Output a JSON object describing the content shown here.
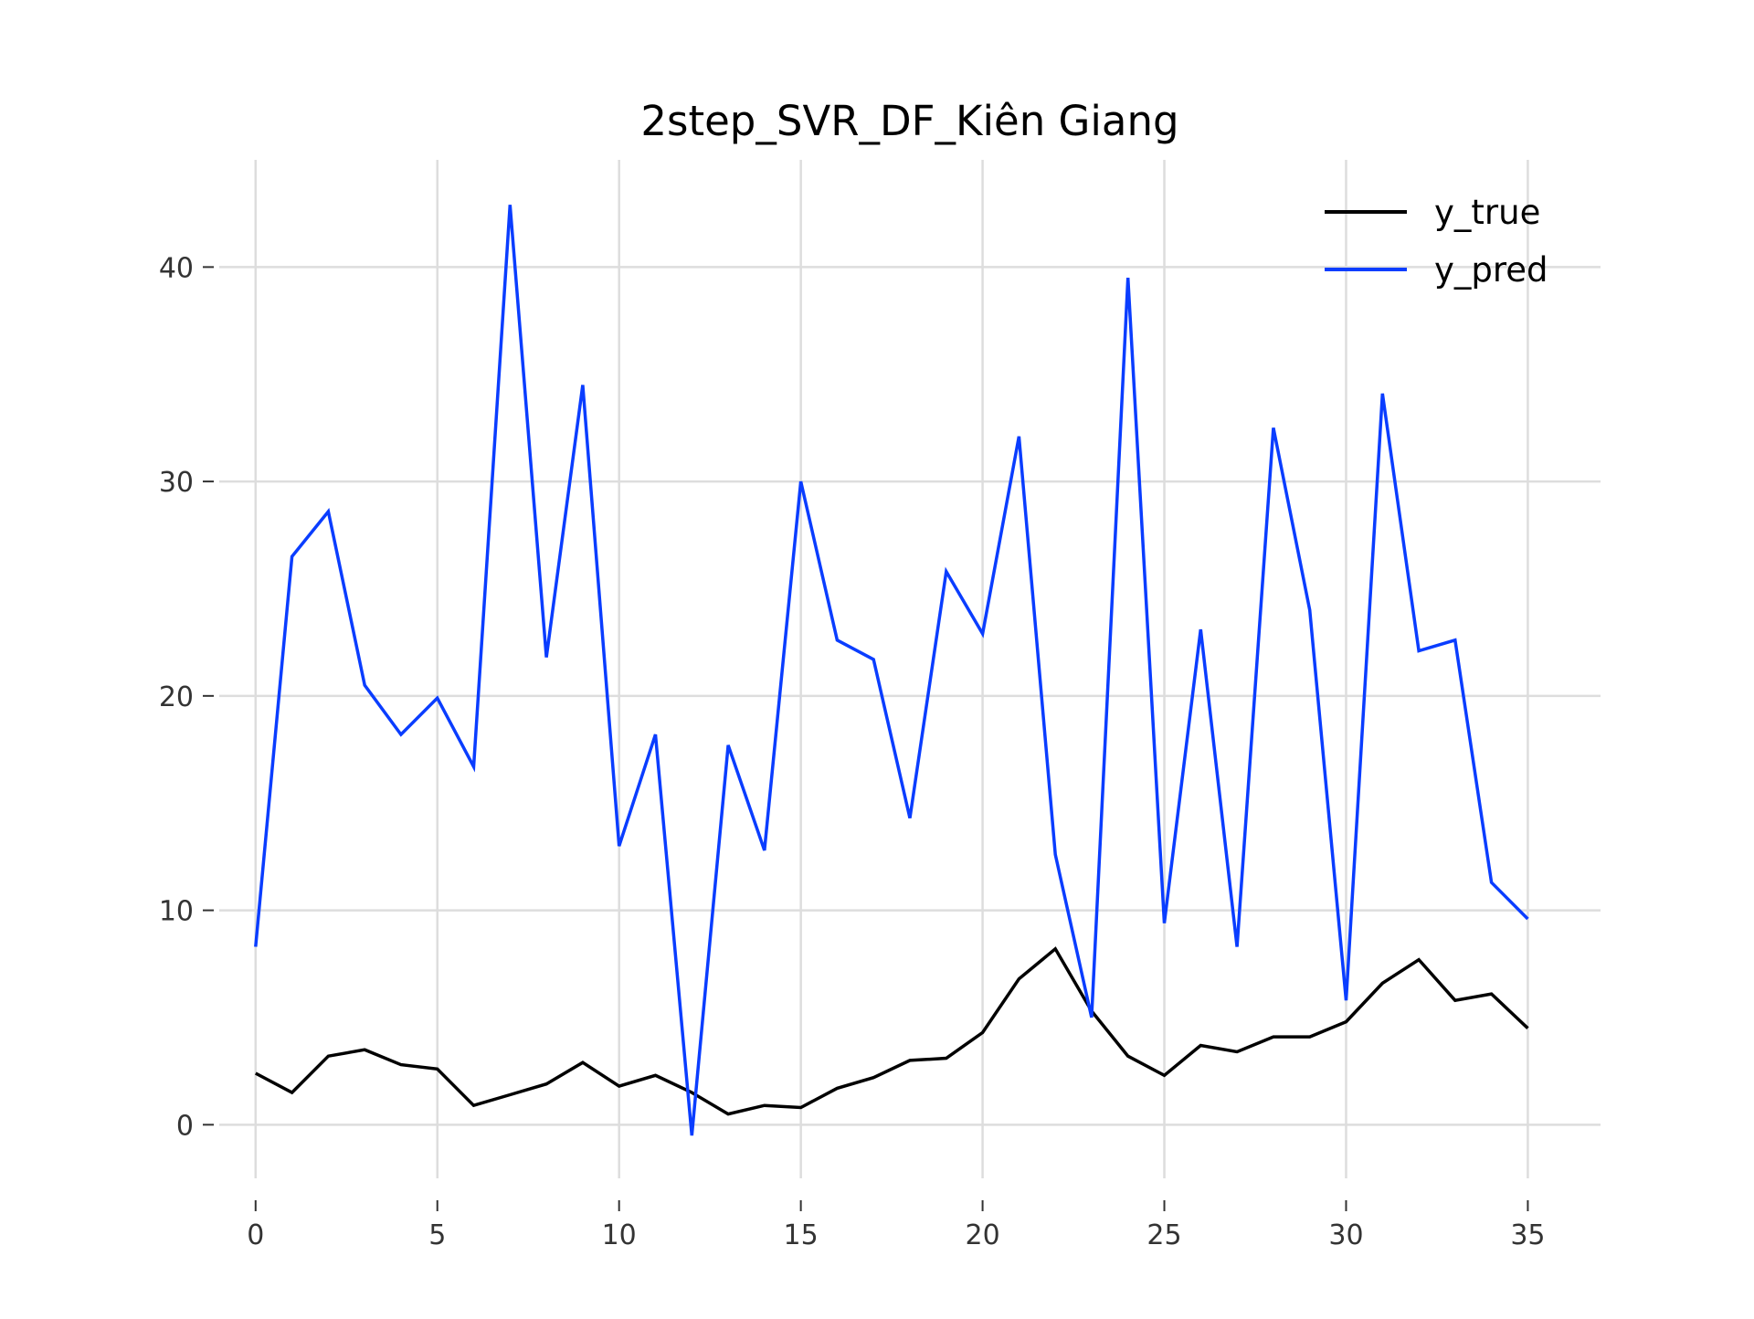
{
  "chart_data": {
    "type": "line",
    "title": "2step_SVR_DF_Kiên Giang",
    "xlabel": "",
    "ylabel": "",
    "xlim": [
      -1,
      37
    ],
    "ylim": [
      -2.5,
      45
    ],
    "grid": true,
    "legend_position": "top-right",
    "x_ticks": [
      0,
      5,
      10,
      15,
      20,
      25,
      30,
      35
    ],
    "x_tick_labels": [
      "0",
      "5",
      "10",
      "15",
      "20",
      "25",
      "30",
      "35"
    ],
    "y_ticks": [
      0,
      10,
      20,
      30,
      40
    ],
    "y_tick_labels": [
      "0",
      "10",
      "20",
      "30",
      "40"
    ],
    "x": [
      0,
      1,
      2,
      3,
      4,
      5,
      6,
      7,
      8,
      9,
      10,
      11,
      12,
      13,
      14,
      15,
      16,
      17,
      18,
      19,
      20,
      21,
      22,
      23,
      24,
      25,
      26,
      27,
      28,
      29,
      30,
      31,
      32,
      33,
      34,
      35
    ],
    "series": [
      {
        "name": "y_true",
        "color": "#000000",
        "values": [
          2.4,
          1.5,
          3.2,
          3.5,
          2.8,
          2.6,
          0.9,
          1.4,
          1.9,
          2.9,
          1.8,
          2.3,
          1.5,
          0.5,
          0.9,
          0.8,
          1.7,
          2.2,
          3.0,
          3.1,
          4.3,
          6.8,
          8.2,
          5.3,
          3.2,
          2.3,
          3.7,
          3.4,
          4.1,
          4.1,
          4.8,
          6.6,
          7.7,
          5.8,
          6.1,
          4.5
        ]
      },
      {
        "name": "y_pred",
        "color": "#0a3dff",
        "values": [
          8.3,
          26.5,
          28.6,
          20.5,
          18.2,
          19.9,
          16.7,
          42.9,
          21.8,
          34.5,
          13.0,
          18.2,
          -0.5,
          17.7,
          12.8,
          30.0,
          22.6,
          21.7,
          14.3,
          25.8,
          22.9,
          32.1,
          12.6,
          5.0,
          39.5,
          9.4,
          23.1,
          8.3,
          32.5,
          24.0,
          5.8,
          34.1,
          22.1,
          22.6,
          11.3,
          9.6
        ]
      }
    ]
  }
}
